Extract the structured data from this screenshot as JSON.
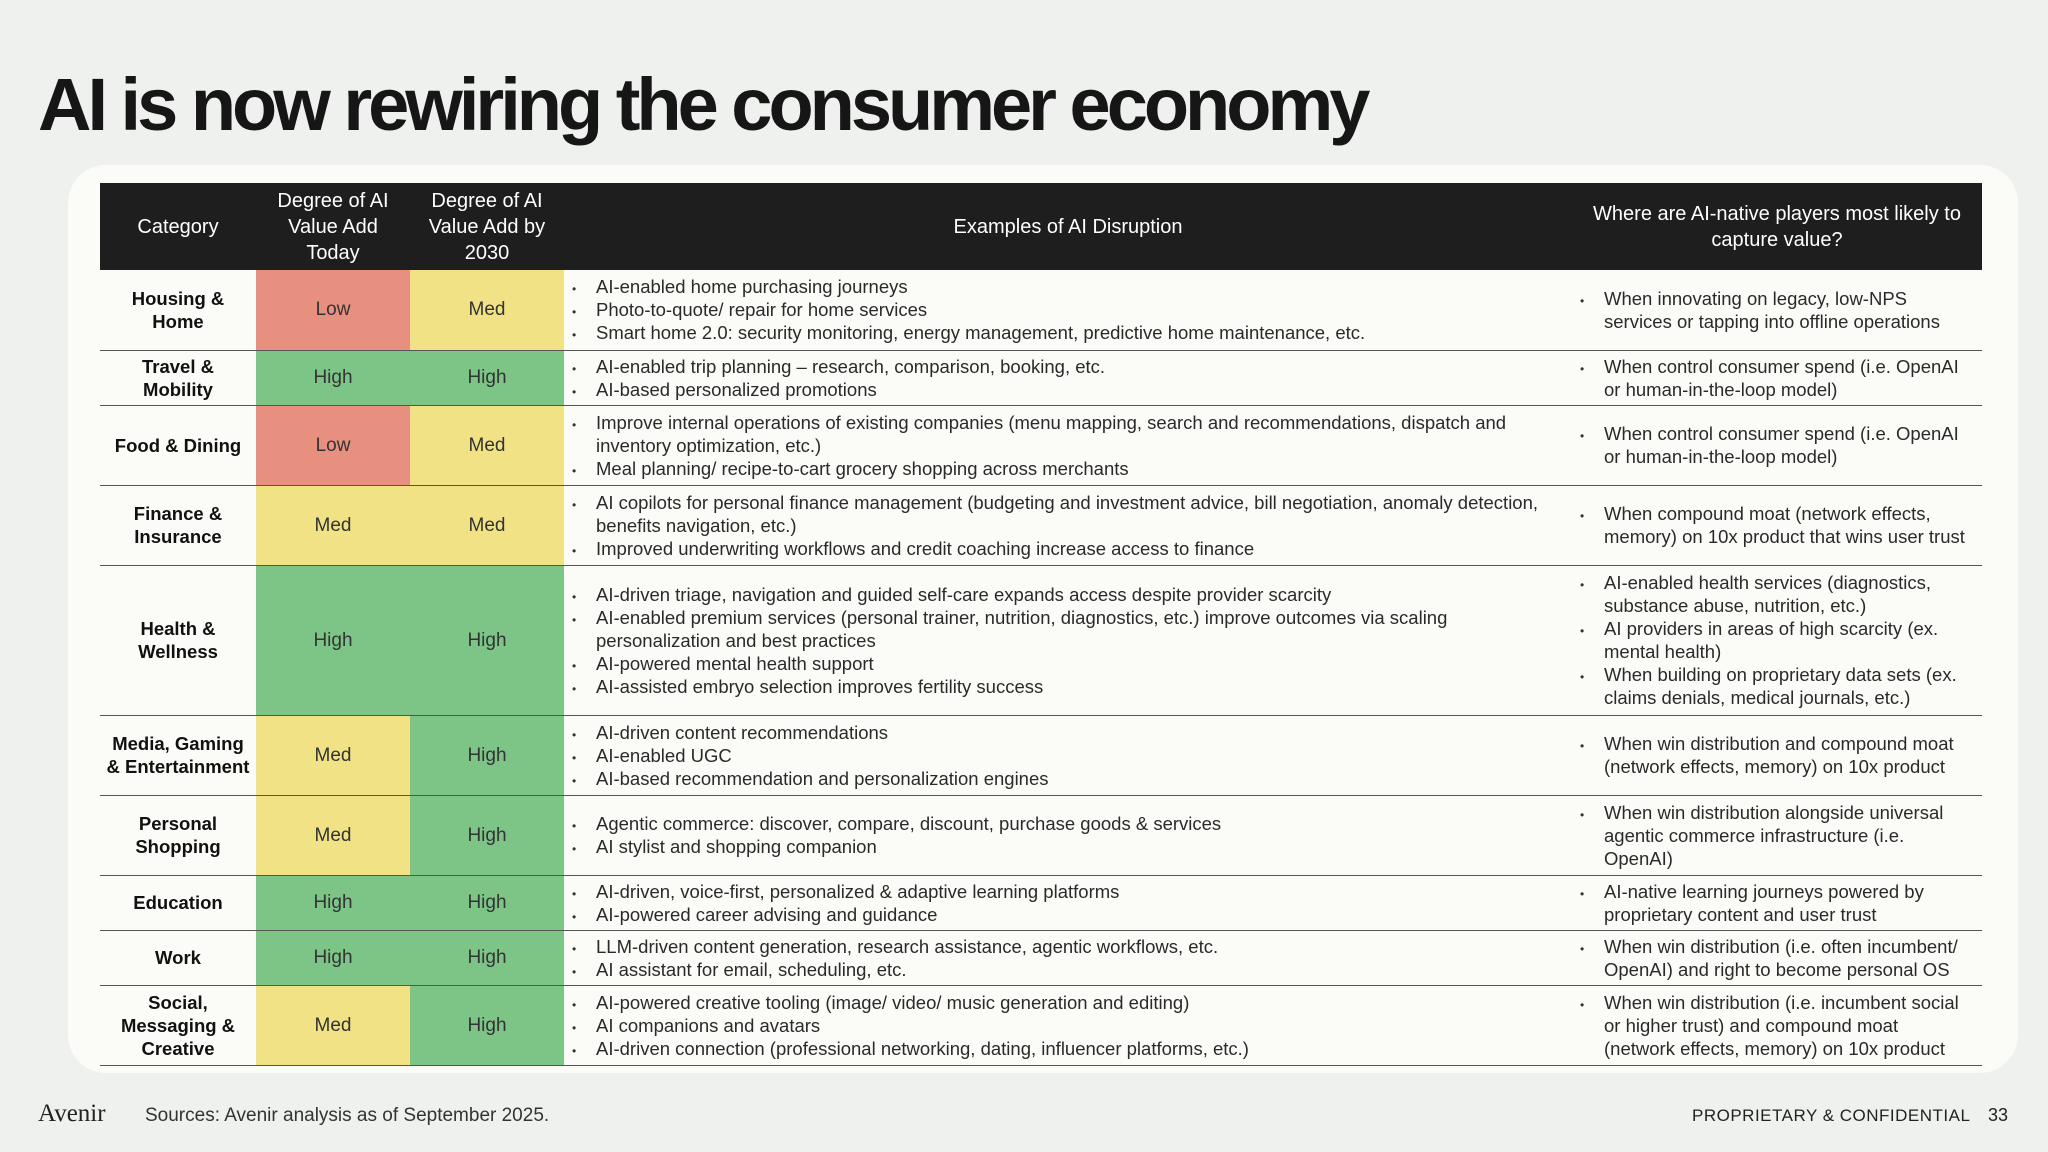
{
  "title": "AI is now rewiring the consumer economy",
  "table": {
    "headers": {
      "category": "Category",
      "today": "Degree of AI Value Add Today",
      "by2030": "Degree of AI Value Add by 2030",
      "examples": "Examples of AI Disruption",
      "capture": "Where are AI-native players most likely to capture value?"
    },
    "level_colors": {
      "Low": "#e8907f",
      "Med": "#f1e385",
      "High": "#7dc487"
    },
    "rows": [
      {
        "category": "Housing & Home",
        "today": "Low",
        "by2030": "Med",
        "examples": [
          "AI-enabled home purchasing journeys",
          "Photo-to-quote/ repair for home services",
          "Smart home 2.0: security monitoring, energy management, predictive home maintenance, etc."
        ],
        "capture": [
          "When innovating on legacy, low-NPS services or tapping into offline operations"
        ]
      },
      {
        "category": "Travel & Mobility",
        "today": "High",
        "by2030": "High",
        "examples": [
          "AI-enabled trip planning – research, comparison, booking, etc.",
          "AI-based personalized promotions"
        ],
        "capture": [
          "When control consumer spend (i.e. OpenAI or human-in-the-loop model)"
        ]
      },
      {
        "category": "Food & Dining",
        "today": "Low",
        "by2030": "Med",
        "examples": [
          "Improve internal operations of existing companies (menu mapping, search and recommendations, dispatch and inventory optimization, etc.)",
          "Meal planning/ recipe-to-cart grocery shopping across merchants"
        ],
        "capture": [
          "When control consumer spend (i.e. OpenAI or human-in-the-loop model)"
        ]
      },
      {
        "category": "Finance & Insurance",
        "today": "Med",
        "by2030": "Med",
        "examples": [
          "AI copilots for personal finance management (budgeting and investment advice, bill negotiation, anomaly detection, benefits navigation, etc.)",
          "Improved underwriting workflows and credit coaching increase access to finance"
        ],
        "capture": [
          "When compound moat (network effects, memory) on 10x product that wins user trust"
        ]
      },
      {
        "category": "Health & Wellness",
        "today": "High",
        "by2030": "High",
        "examples": [
          "AI-driven triage, navigation and guided self-care expands access despite provider scarcity",
          "AI-enabled premium services (personal trainer, nutrition, diagnostics, etc.) improve outcomes via scaling personalization and best practices",
          "AI-powered mental health support",
          "AI-assisted embryo selection improves fertility success"
        ],
        "capture": [
          "AI-enabled health services (diagnostics, substance abuse, nutrition, etc.)",
          "AI providers in areas of high scarcity (ex. mental health)",
          "When building on proprietary data sets (ex. claims denials, medical journals, etc.)"
        ]
      },
      {
        "category": "Media, Gaming & Entertainment",
        "today": "Med",
        "by2030": "High",
        "examples": [
          "AI-driven content recommendations",
          "AI-enabled UGC",
          "AI-based recommendation and personalization engines"
        ],
        "capture": [
          "When win distribution and compound moat (network effects, memory) on 10x product"
        ]
      },
      {
        "category": "Personal Shopping",
        "today": "Med",
        "by2030": "High",
        "examples": [
          "Agentic commerce: discover, compare, discount, purchase goods & services",
          "AI stylist and shopping companion"
        ],
        "capture": [
          "When win distribution alongside universal agentic commerce infrastructure (i.e. OpenAI)"
        ]
      },
      {
        "category": "Education",
        "today": "High",
        "by2030": "High",
        "examples": [
          "AI-driven, voice-first, personalized & adaptive learning platforms",
          "AI-powered career advising and guidance"
        ],
        "capture": [
          "AI-native learning journeys powered by proprietary content and user trust"
        ]
      },
      {
        "category": "Work",
        "today": "High",
        "by2030": "High",
        "examples": [
          "LLM-driven content generation, research assistance, agentic workflows, etc.",
          "AI assistant for email, scheduling, etc."
        ],
        "capture": [
          "When win distribution (i.e. often incumbent/ OpenAI) and right to become personal OS"
        ]
      },
      {
        "category": "Social, Messaging & Creative",
        "today": "Med",
        "by2030": "High",
        "examples": [
          "AI-powered creative tooling (image/ video/ music generation and editing)",
          "AI companions and avatars",
          "AI-driven connection (professional networking, dating, influencer platforms, etc.)"
        ],
        "capture": [
          "When win distribution (i.e. incumbent social or higher trust) and compound moat (network effects, memory) on 10x product"
        ]
      }
    ]
  },
  "footer": {
    "logo": "Avenir",
    "sources": "Sources: Avenir analysis as of September 2025.",
    "confidential": "PROPRIETARY & CONFIDENTIAL",
    "page_number": "33"
  }
}
